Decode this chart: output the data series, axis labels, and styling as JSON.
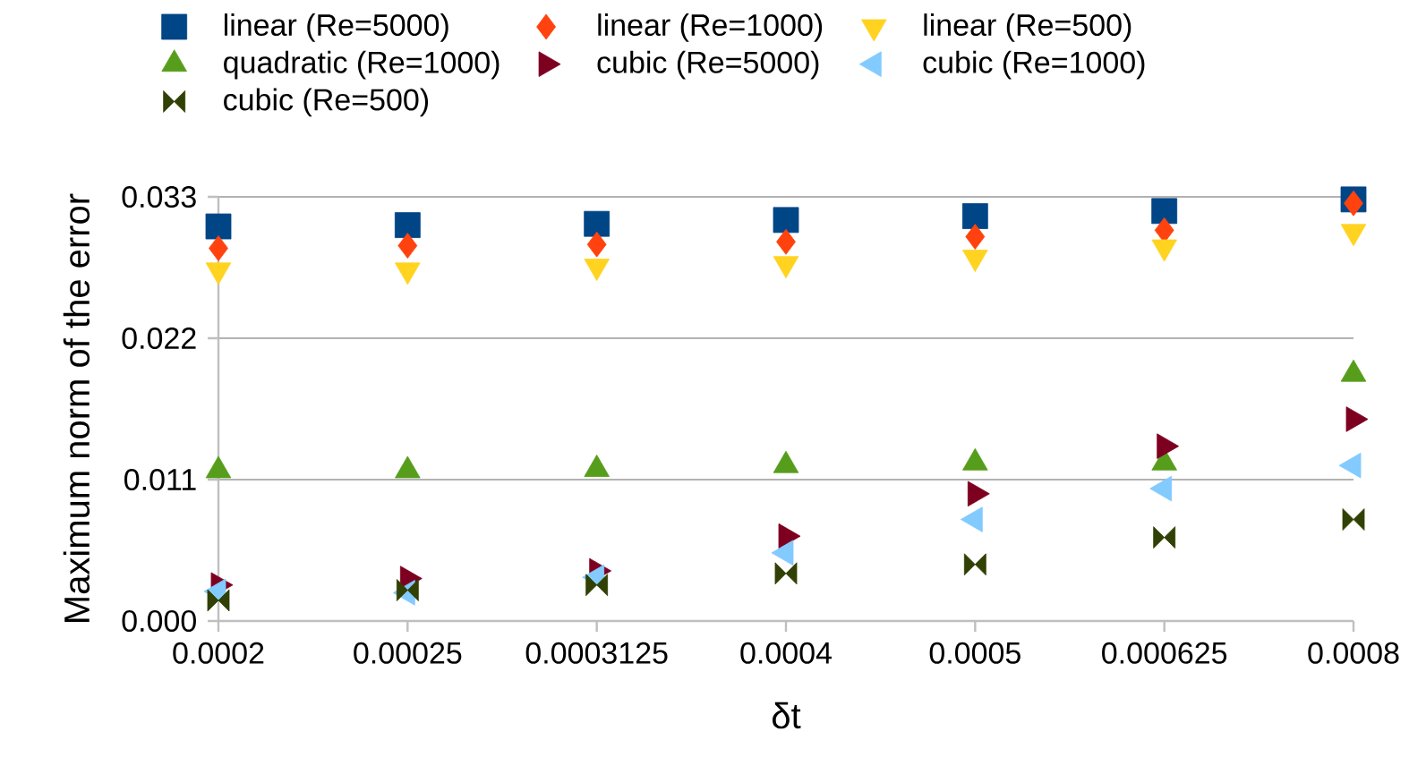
{
  "chart_data": {
    "type": "scatter",
    "xlabel": "δt",
    "ylabel": "Maximum norm of the error",
    "categories": [
      "0.0002",
      "0.00025",
      "0.0003125",
      "0.0004",
      "0.0005",
      "0.000625",
      "0.0008"
    ],
    "ylim": [
      0,
      0.033
    ],
    "yticks": [
      {
        "value": 0,
        "label": "0.000"
      },
      {
        "value": 0.011,
        "label": "0.011"
      },
      {
        "value": 0.022,
        "label": "0.022"
      },
      {
        "value": 0.033,
        "label": "0.033"
      }
    ],
    "grid": "y",
    "legend": "top",
    "series": [
      {
        "name": "linear (Re=5000)",
        "color": "#004586",
        "marker": "square",
        "values": [
          0.0307,
          0.0308,
          0.0309,
          0.0312,
          0.0315,
          0.0319,
          0.0328
        ]
      },
      {
        "name": "linear (Re=1000)",
        "color": "#ff420e",
        "marker": "diamond",
        "values": [
          0.029,
          0.0292,
          0.0293,
          0.0295,
          0.0299,
          0.0304,
          0.0325
        ]
      },
      {
        "name": "linear (Re=500)",
        "color": "#ffd320",
        "marker": "triangle down",
        "values": [
          0.0273,
          0.0273,
          0.0276,
          0.0278,
          0.0283,
          0.0291,
          0.0303
        ]
      },
      {
        "name": "quadratic (Re=1000)",
        "color": "#579d1c",
        "marker": "triangle",
        "values": [
          0.0117,
          0.0117,
          0.0118,
          0.0121,
          0.0123,
          0.0123,
          0.0192
        ]
      },
      {
        "name": "cubic (Re=5000)",
        "color": "#7e0021",
        "marker": "triangle right",
        "values": [
          0.0028,
          0.0033,
          0.0039,
          0.0066,
          0.0099,
          0.0136,
          0.0157
        ]
      },
      {
        "name": "cubic (Re=1000)",
        "color": "#83caff",
        "marker": "triangle left",
        "values": [
          0.0023,
          0.0022,
          0.0034,
          0.0053,
          0.0079,
          0.0103,
          0.0121
        ]
      },
      {
        "name": "cubic (Re=500)",
        "color": "#314004",
        "values": [
          0.0016,
          0.0024,
          0.0028,
          0.0037,
          0.0044,
          0.0065,
          0.0079
        ]
      }
    ]
  }
}
